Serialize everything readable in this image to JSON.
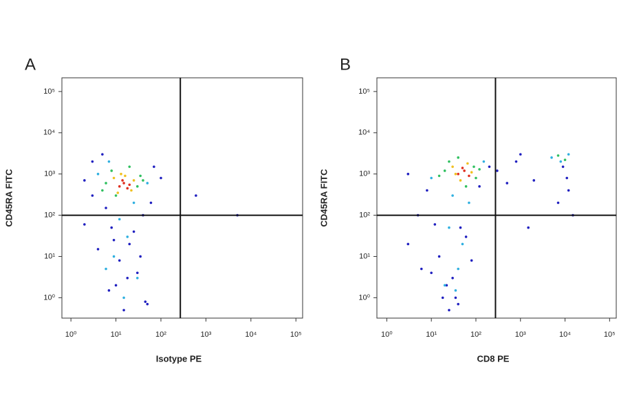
{
  "chart_data": [
    {
      "type": "scatter",
      "panel_label": "A",
      "x_label": "Isotype PE",
      "y_label": "CD45RA FITC",
      "log_x": true,
      "log_y": true,
      "xlim": [
        0.63,
        141000
      ],
      "ylim": [
        0.32,
        215000
      ],
      "xticks": [
        {
          "value": 1,
          "label": "10⁰"
        },
        {
          "value": 10,
          "label": "10¹"
        },
        {
          "value": 100,
          "label": "10²"
        },
        {
          "value": 1000,
          "label": "10³"
        },
        {
          "value": 10000,
          "label": "10⁴"
        },
        {
          "value": 100000,
          "label": "10⁵"
        }
      ],
      "yticks": [
        {
          "value": 1,
          "label": "10⁰"
        },
        {
          "value": 10,
          "label": "10¹"
        },
        {
          "value": 100,
          "label": "10²"
        },
        {
          "value": 1000,
          "label": "10³"
        },
        {
          "value": 10000,
          "label": "10⁴"
        },
        {
          "value": 100000,
          "label": "10⁵"
        }
      ],
      "xgate": 270,
      "ygate": 100,
      "series": [
        {
          "color": "#2020c0",
          "x": [
            2,
            70,
            3,
            100,
            5,
            60,
            8,
            40,
            20,
            12,
            4,
            30,
            10,
            50,
            7,
            25,
            15,
            3,
            6,
            35,
            2,
            45,
            18,
            9,
            600,
            5000
          ],
          "values": [
            700,
            1500,
            300,
            800,
            3000,
            200,
            50,
            100,
            20,
            8,
            15,
            4,
            2,
            0.7,
            1.5,
            40,
            0.5,
            2000,
            150,
            10,
            60,
            0.8,
            3,
            25,
            300,
            100
          ]
        },
        {
          "color": "#30b0e0",
          "x": [
            4,
            50,
            7,
            25,
            12,
            18,
            9,
            30,
            15,
            6
          ],
          "values": [
            1000,
            600,
            2000,
            200,
            80,
            30,
            10,
            3,
            1,
            5
          ]
        },
        {
          "color": "#30c060",
          "x": [
            6,
            30,
            8,
            35,
            10,
            20,
            40,
            5
          ],
          "values": [
            600,
            500,
            1200,
            900,
            300,
            1500,
            700,
            400
          ]
        },
        {
          "color": "#f0c020",
          "x": [
            9,
            22,
            16,
            11,
            25,
            13
          ],
          "values": [
            800,
            400,
            900,
            350,
            700,
            1000
          ]
        },
        {
          "color": "#e03020",
          "x": [
            12,
            15,
            18,
            14,
            20
          ],
          "values": [
            500,
            600,
            450,
            700,
            550
          ]
        }
      ]
    },
    {
      "type": "scatter",
      "panel_label": "B",
      "x_label": "CD8 PE",
      "y_label": "CD45RA FITC",
      "log_x": true,
      "log_y": true,
      "xlim": [
        0.6,
        141000
      ],
      "ylim": [
        0.32,
        215000
      ],
      "xticks": [
        {
          "value": 1,
          "label": "10⁰"
        },
        {
          "value": 10,
          "label": "10¹"
        },
        {
          "value": 100,
          "label": "10²"
        },
        {
          "value": 1000,
          "label": "10³"
        },
        {
          "value": 10000,
          "label": "10⁴"
        },
        {
          "value": 100000,
          "label": "10⁵"
        }
      ],
      "yticks": [
        {
          "value": 1,
          "label": "10⁰"
        },
        {
          "value": 10,
          "label": "10¹"
        },
        {
          "value": 100,
          "label": "10²"
        },
        {
          "value": 1000,
          "label": "10³"
        },
        {
          "value": 10000,
          "label": "10⁴"
        },
        {
          "value": 100000,
          "label": "10⁵"
        }
      ],
      "xgate": 275,
      "ygate": 100,
      "series": [
        {
          "color": "#2020c0",
          "x": [
            3,
            200,
            8,
            300,
            5,
            120,
            12,
            60,
            15,
            30,
            18,
            40,
            25,
            80,
            10,
            45,
            2000,
            500,
            9000,
            12000,
            15000,
            7000,
            1500,
            800,
            3,
            6,
            1000,
            11000,
            22,
            35
          ],
          "values": [
            1000,
            1500,
            400,
            1200,
            100,
            500,
            60,
            30,
            10,
            3,
            1,
            0.7,
            0.5,
            8,
            4,
            50,
            700,
            600,
            1500,
            400,
            100,
            200,
            50,
            2000,
            20,
            5,
            3000,
            800,
            2,
            1
          ]
        },
        {
          "color": "#30b0e0",
          "x": [
            10,
            150,
            30,
            70,
            25,
            40,
            20,
            35,
            5000,
            12000,
            8000,
            50
          ],
          "values": [
            800,
            2000,
            300,
            200,
            50,
            5,
            2,
            1.5,
            2500,
            3000,
            2000,
            20
          ]
        },
        {
          "color": "#30c060",
          "x": [
            20,
            100,
            25,
            60,
            90,
            15,
            120,
            40,
            7000,
            10000
          ],
          "values": [
            1200,
            800,
            2000,
            500,
            1500,
            900,
            1300,
            2500,
            2800,
            2200
          ]
        },
        {
          "color": "#f0c020",
          "x": [
            30,
            80,
            45,
            65,
            35
          ],
          "values": [
            1500,
            1100,
            700,
            1800,
            1000
          ]
        },
        {
          "color": "#e03020",
          "x": [
            40,
            55,
            70,
            50
          ],
          "values": [
            1000,
            1200,
            900,
            1400
          ]
        }
      ]
    }
  ]
}
